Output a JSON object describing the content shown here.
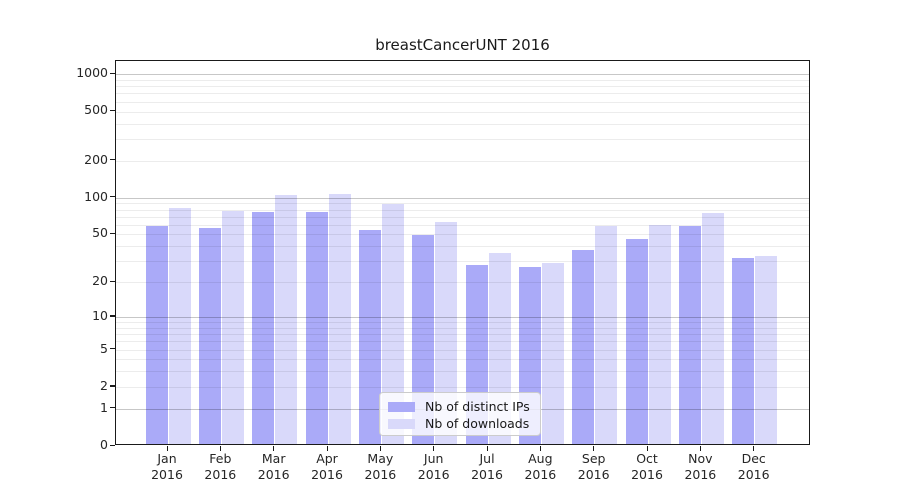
{
  "chart_data": {
    "type": "bar",
    "title": "breastCancerUNT 2016",
    "categories": [
      "Jan",
      "Feb",
      "Mar",
      "Apr",
      "May",
      "Jun",
      "Jul",
      "Aug",
      "Sep",
      "Oct",
      "Nov",
      "Dec"
    ],
    "category_year": "2016",
    "series": [
      {
        "name": "Nb of distinct IPs",
        "color": "#aaaaf8",
        "values": [
          57,
          54,
          73,
          74,
          52,
          48,
          27,
          26,
          36,
          44,
          56,
          31
        ]
      },
      {
        "name": "Nb of downloads",
        "color": "#d9d9fa",
        "values": [
          80,
          75,
          101,
          104,
          85,
          61,
          34,
          28,
          57,
          58,
          72,
          32
        ]
      }
    ],
    "y_ticks": [
      0,
      1,
      2,
      5,
      10,
      20,
      50,
      100,
      200,
      500,
      1000
    ],
    "y_scale": "log1p",
    "ylim": [
      0,
      1280
    ],
    "xlabel": "",
    "ylabel": "",
    "grid": "on",
    "legend_position": "bottom-center",
    "colors": {
      "major_grid": "#c7c7c7",
      "minor_grid": "#ececec",
      "axis": "#1a1a1a",
      "text": "#262626"
    }
  }
}
